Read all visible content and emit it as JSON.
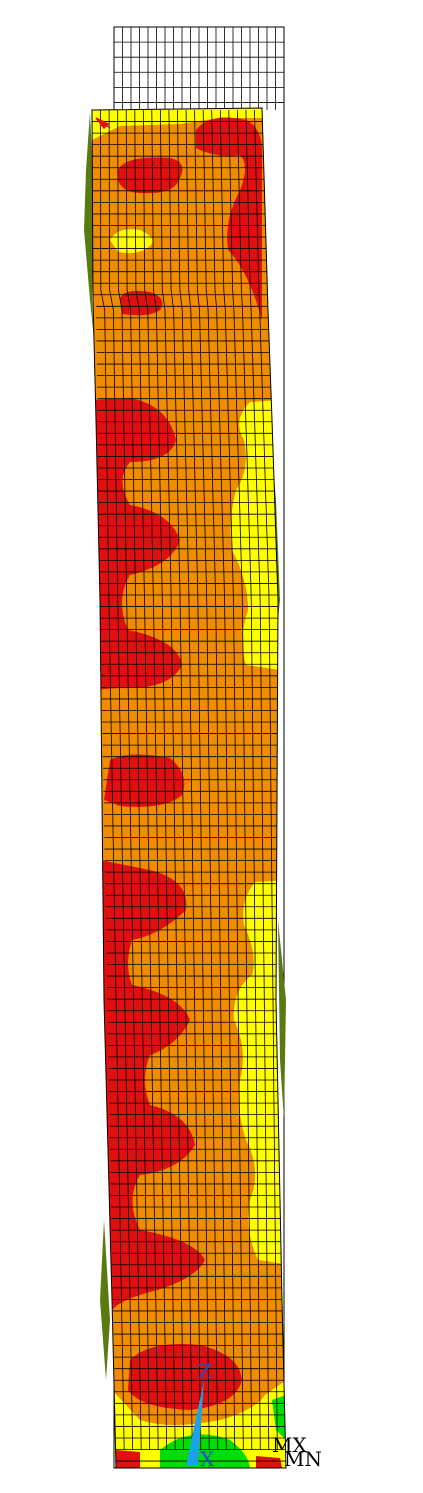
{
  "viewer": {
    "triad": {
      "z": "Z",
      "x": "X"
    },
    "markers": {
      "mx": "MX",
      "mn": "MN"
    }
  },
  "colors": {
    "background": "#ffffff",
    "mesh_line": "#000000",
    "band_red": "#e01010",
    "band_orange": "#f08c00",
    "band_yellow": "#ffff00",
    "band_green": "#00dd00",
    "band_olive": "#5a7a10",
    "triad_blue": "#1aa3e8"
  },
  "mesh": {
    "columns": 10,
    "rows": 84
  }
}
